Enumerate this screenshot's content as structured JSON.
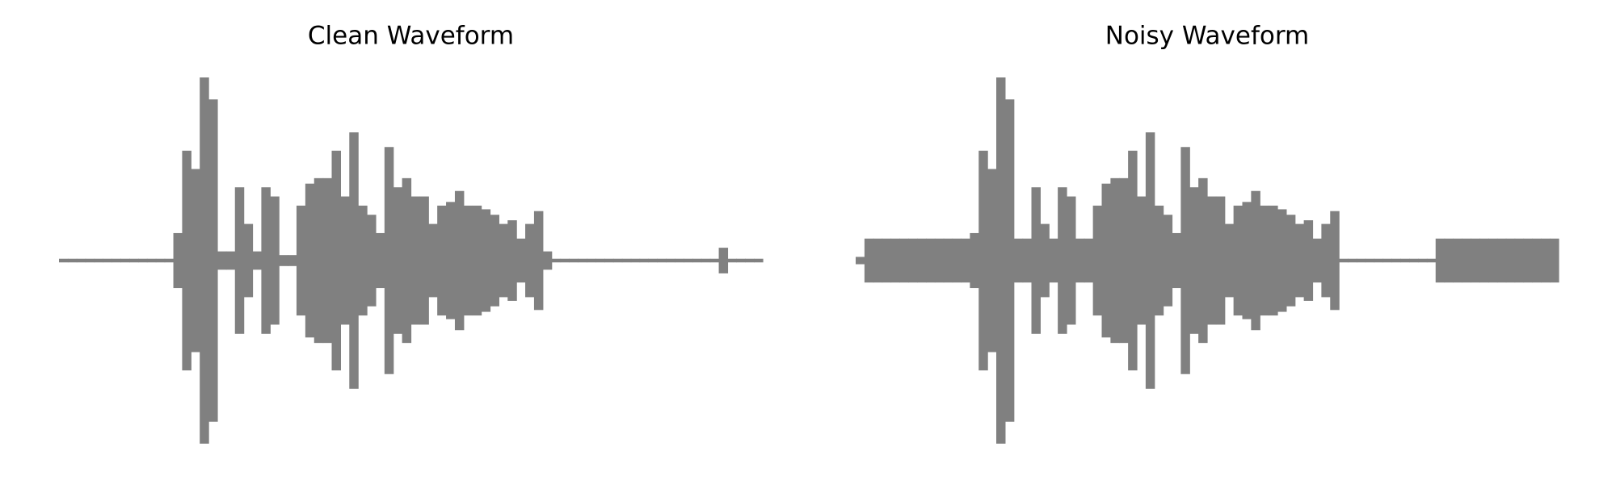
{
  "chart_data": [
    {
      "type": "waveform",
      "title": "Clean Waveform",
      "color": "#808080",
      "ylim": [
        -1,
        1
      ],
      "values": [
        0.01,
        0.01,
        0.01,
        0.01,
        0.01,
        0.01,
        0.01,
        0.01,
        0.01,
        0.01,
        0.01,
        0.01,
        0.01,
        0.15,
        0.6,
        0.5,
        1.0,
        0.88,
        0.05,
        0.05,
        0.4,
        0.2,
        0.05,
        0.4,
        0.35,
        0.03,
        0.03,
        0.3,
        0.42,
        0.45,
        0.45,
        0.6,
        0.35,
        0.7,
        0.3,
        0.25,
        0.15,
        0.62,
        0.4,
        0.45,
        0.35,
        0.35,
        0.2,
        0.3,
        0.32,
        0.38,
        0.3,
        0.3,
        0.28,
        0.25,
        0.2,
        0.22,
        0.12,
        0.2,
        0.27,
        0.05,
        0.01,
        0.01,
        0.01,
        0.01,
        0.01,
        0.01,
        0.01,
        0.01,
        0.01,
        0.01,
        0.01,
        0.01,
        0.01,
        0.01,
        0.01,
        0.01,
        0.01,
        0.01,
        0.01,
        0.07,
        0.01,
        0.01,
        0.01,
        0.01
      ]
    },
    {
      "type": "waveform",
      "title": "Noisy Waveform",
      "color": "#808080",
      "ylim": [
        -1,
        1
      ],
      "values": [
        0.02,
        0.12,
        0.12,
        0.12,
        0.12,
        0.12,
        0.12,
        0.12,
        0.12,
        0.12,
        0.12,
        0.12,
        0.12,
        0.15,
        0.6,
        0.5,
        1.0,
        0.88,
        0.12,
        0.12,
        0.4,
        0.2,
        0.12,
        0.4,
        0.35,
        0.12,
        0.12,
        0.3,
        0.42,
        0.45,
        0.45,
        0.6,
        0.35,
        0.7,
        0.3,
        0.25,
        0.15,
        0.62,
        0.4,
        0.45,
        0.35,
        0.35,
        0.2,
        0.3,
        0.32,
        0.38,
        0.3,
        0.3,
        0.28,
        0.25,
        0.2,
        0.22,
        0.12,
        0.2,
        0.27,
        0.01,
        0.01,
        0.01,
        0.01,
        0.01,
        0.01,
        0.01,
        0.01,
        0.01,
        0.01,
        0.01,
        0.12,
        0.12,
        0.12,
        0.12,
        0.12,
        0.12,
        0.12,
        0.12,
        0.12,
        0.12,
        0.12,
        0.12,
        0.12,
        0.12
      ]
    }
  ]
}
